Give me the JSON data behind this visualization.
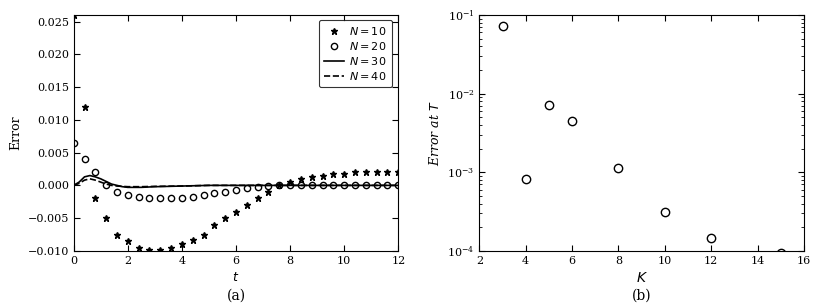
{
  "panel_a": {
    "xlabel": "t",
    "ylabel": "Error",
    "xlim": [
      0,
      12
    ],
    "ylim": [
      -0.01,
      0.026
    ],
    "yticks": [
      -0.01,
      -0.005,
      0.0,
      0.005,
      0.01,
      0.015,
      0.02,
      0.025
    ],
    "xticks": [
      0,
      2,
      4,
      6,
      8,
      10,
      12
    ],
    "label_fontsize": 9,
    "caption": "(a)",
    "N10_t": [
      0.0,
      0.4,
      0.8,
      1.2,
      1.6,
      2.0,
      2.4,
      2.8,
      3.2,
      3.6,
      4.0,
      4.4,
      4.8,
      5.2,
      5.6,
      6.0,
      6.4,
      6.8,
      7.2,
      7.6,
      8.0,
      8.4,
      8.8,
      9.2,
      9.6,
      10.0,
      10.4,
      10.8,
      11.2,
      11.6,
      12.0
    ],
    "N10_y": [
      0.026,
      0.012,
      -0.002,
      -0.005,
      -0.0075,
      -0.0085,
      -0.0095,
      -0.0098,
      -0.0098,
      -0.0095,
      -0.009,
      -0.0083,
      -0.0075,
      -0.006,
      -0.005,
      -0.004,
      -0.003,
      -0.002,
      -0.001,
      0.0,
      0.0005,
      0.001,
      0.0013,
      0.0015,
      0.0017,
      0.0018,
      0.002,
      0.002,
      0.002,
      0.002,
      0.002
    ],
    "N20_t": [
      0.0,
      0.4,
      0.8,
      1.2,
      1.6,
      2.0,
      2.4,
      2.8,
      3.2,
      3.6,
      4.0,
      4.4,
      4.8,
      5.2,
      5.6,
      6.0,
      6.4,
      6.8,
      7.2,
      7.6,
      8.0,
      8.4,
      8.8,
      9.2,
      9.6,
      10.0,
      10.4,
      10.8,
      11.2,
      11.6,
      12.0
    ],
    "N20_y": [
      0.0065,
      0.004,
      0.002,
      0.0,
      -0.001,
      -0.0015,
      -0.00175,
      -0.0019,
      -0.002,
      -0.002,
      -0.0019,
      -0.0017,
      -0.0015,
      -0.0012,
      -0.001,
      -0.0007,
      -0.0004,
      -0.0002,
      -0.0001,
      0.0,
      0.0,
      0.0,
      0.0,
      0.0,
      0.0,
      0.0,
      0.0,
      0.0,
      0.0,
      0.0,
      0.0
    ],
    "N30_t": [
      0.0,
      0.2,
      0.4,
      0.6,
      0.8,
      1.0,
      1.2,
      1.4,
      1.6,
      1.8,
      2.0,
      2.5,
      3.0,
      4.0,
      5.0,
      6.0,
      7.0,
      8.0,
      9.0,
      10.0,
      11.0,
      12.0
    ],
    "N30_y": [
      0.0,
      0.0005,
      0.0013,
      0.0015,
      0.0013,
      0.001,
      0.0006,
      0.0002,
      0.0,
      -0.0002,
      -0.0003,
      -0.0003,
      -0.0002,
      -0.0001,
      0.0,
      0.0,
      0.0,
      0.0,
      0.0,
      0.0,
      0.0,
      0.0
    ],
    "N40_t": [
      0.0,
      0.2,
      0.4,
      0.6,
      0.8,
      1.0,
      1.2,
      1.4,
      1.6,
      1.8,
      2.0,
      2.5,
      3.0,
      4.0,
      5.0,
      6.0,
      7.0,
      8.0,
      9.0,
      10.0,
      11.0,
      12.0
    ],
    "N40_y": [
      0.0,
      0.0003,
      0.0008,
      0.001,
      0.0008,
      0.0005,
      0.0002,
      0.0,
      -0.0001,
      -0.00015,
      -0.0002,
      -0.0002,
      -0.00015,
      -0.0001,
      0.0,
      0.0,
      0.0,
      0.0,
      0.0,
      0.0,
      0.0,
      0.0
    ]
  },
  "panel_b": {
    "xlabel": "K",
    "ylabel": "Error at $T$",
    "xlim": [
      2,
      16
    ],
    "xticks": [
      2,
      4,
      6,
      8,
      10,
      12,
      14,
      16
    ],
    "caption": "(b)",
    "K_vals": [
      3,
      4,
      5,
      6,
      8,
      10,
      12,
      15
    ],
    "err_vals": [
      0.072,
      0.00082,
      0.0072,
      0.0045,
      0.00115,
      0.00031,
      0.000145,
      9.5e-05
    ]
  },
  "background_color": "#ffffff",
  "edge_color": "#000000"
}
